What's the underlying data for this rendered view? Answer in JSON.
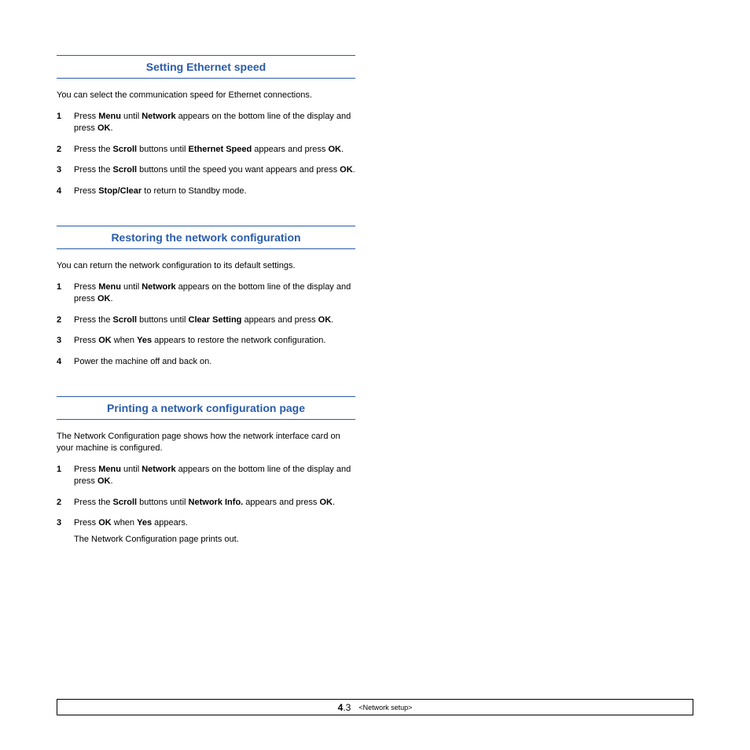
{
  "colors": {
    "heading": "#2a5caa",
    "text": "#000000",
    "background": "#ffffff"
  },
  "sections": [
    {
      "title": "Setting Ethernet speed",
      "intro": "You can select the communication speed for Ethernet connections.",
      "steps": [
        {
          "n": "1",
          "parts": [
            {
              "t": "Press "
            },
            {
              "t": "Menu",
              "b": true
            },
            {
              "t": " until "
            },
            {
              "t": "Network",
              "b": true
            },
            {
              "t": " appears on the bottom line of the display and press "
            },
            {
              "t": "OK",
              "b": true
            },
            {
              "t": "."
            }
          ]
        },
        {
          "n": "2",
          "parts": [
            {
              "t": "Press the "
            },
            {
              "t": "Scroll",
              "b": true
            },
            {
              "t": " buttons until "
            },
            {
              "t": "Ethernet Speed",
              "b": true
            },
            {
              "t": " appears and press "
            },
            {
              "t": "OK",
              "b": true
            },
            {
              "t": "."
            }
          ]
        },
        {
          "n": "3",
          "parts": [
            {
              "t": "Press the "
            },
            {
              "t": "Scroll",
              "b": true
            },
            {
              "t": " buttons until the speed you want appears and press "
            },
            {
              "t": "OK",
              "b": true
            },
            {
              "t": "."
            }
          ]
        },
        {
          "n": "4",
          "parts": [
            {
              "t": "Press "
            },
            {
              "t": "Stop/Clear",
              "b": true
            },
            {
              "t": " to return to Standby mode."
            }
          ]
        }
      ]
    },
    {
      "title": "Restoring the network configuration",
      "intro": "You can return the network configuration to its default settings.",
      "steps": [
        {
          "n": "1",
          "parts": [
            {
              "t": "Press "
            },
            {
              "t": "Menu",
              "b": true
            },
            {
              "t": " until "
            },
            {
              "t": "Network",
              "b": true
            },
            {
              "t": " appears on the bottom line of the display and press "
            },
            {
              "t": "OK",
              "b": true
            },
            {
              "t": "."
            }
          ]
        },
        {
          "n": "2",
          "parts": [
            {
              "t": "Press the "
            },
            {
              "t": "Scroll",
              "b": true
            },
            {
              "t": " buttons until "
            },
            {
              "t": "Clear Setting",
              "b": true
            },
            {
              "t": " appears and press "
            },
            {
              "t": "OK",
              "b": true
            },
            {
              "t": "."
            }
          ]
        },
        {
          "n": "3",
          "parts": [
            {
              "t": "Press "
            },
            {
              "t": "OK",
              "b": true
            },
            {
              "t": " when "
            },
            {
              "t": "Yes",
              "b": true
            },
            {
              "t": " appears to restore the network configuration."
            }
          ]
        },
        {
          "n": "4",
          "parts": [
            {
              "t": "Power the machine off and back on."
            }
          ]
        }
      ]
    },
    {
      "title": "Printing a network configuration page",
      "intro": "The Network Configuration page shows how the network interface card on your machine is configured.",
      "steps": [
        {
          "n": "1",
          "parts": [
            {
              "t": "Press "
            },
            {
              "t": "Menu",
              "b": true
            },
            {
              "t": " until "
            },
            {
              "t": "Network",
              "b": true
            },
            {
              "t": " appears on the bottom line of the display and press "
            },
            {
              "t": "OK",
              "b": true
            },
            {
              "t": "."
            }
          ]
        },
        {
          "n": "2",
          "parts": [
            {
              "t": "Press the "
            },
            {
              "t": "Scroll",
              "b": true
            },
            {
              "t": " buttons until "
            },
            {
              "t": "Network Info.",
              "b": true
            },
            {
              "t": " appears and press "
            },
            {
              "t": "OK",
              "b": true
            },
            {
              "t": "."
            }
          ]
        },
        {
          "n": "3",
          "parts": [
            {
              "t": "Press "
            },
            {
              "t": "OK",
              "b": true
            },
            {
              "t": " when "
            },
            {
              "t": "Yes",
              "b": true
            },
            {
              "t": " appears."
            }
          ],
          "sub": "The Network Configuration page prints out."
        }
      ]
    }
  ],
  "footer": {
    "major": "4",
    "minor": ".3",
    "label": "<Network setup>"
  }
}
